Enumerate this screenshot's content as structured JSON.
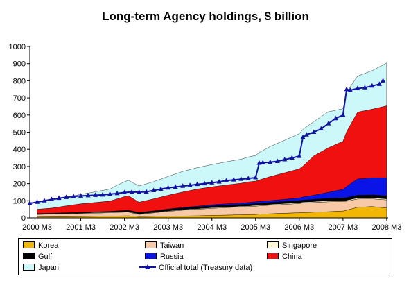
{
  "chart_data": {
    "type": "area",
    "title": "Long-term Agency holdings, $ billion",
    "xlabel": "",
    "ylabel": "",
    "ylim": [
      0,
      1000
    ],
    "yticks": [
      0,
      100,
      200,
      300,
      400,
      500,
      600,
      700,
      800,
      900,
      1000
    ],
    "xtick_labels": [
      "2000 M3",
      "2001 M3",
      "2002 M3",
      "2003 M3",
      "2004 M3",
      "2005 M3",
      "2006 M3",
      "2007 M3",
      "2008 M3"
    ],
    "x_months": [
      2000.167,
      2000.5,
      2000.833,
      2001.167,
      2001.5,
      2001.833,
      2002.0,
      2002.25,
      2002.5,
      2002.833,
      2003.167,
      2003.5,
      2003.833,
      2004.167,
      2004.5,
      2004.833,
      2005.0,
      2005.167,
      2005.25,
      2005.5,
      2005.833,
      2006.167,
      2006.25,
      2006.5,
      2006.833,
      2007.167,
      2007.25,
      2007.5,
      2007.833,
      2008.167
    ],
    "stack_order": [
      "Korea",
      "Taiwan",
      "Singapore",
      "Gulf",
      "Russia",
      "China",
      "Japan"
    ],
    "series": [
      {
        "name": "Korea",
        "color": "#f2b705",
        "values": [
          5,
          6,
          7,
          8,
          9,
          10,
          11,
          12,
          8,
          9,
          10,
          11,
          12,
          14,
          16,
          18,
          19,
          20,
          22,
          24,
          27,
          30,
          31,
          33,
          36,
          40,
          45,
          62,
          66,
          58
        ]
      },
      {
        "name": "Taiwan",
        "color": "#f7c9a6",
        "values": [
          15,
          16,
          17,
          18,
          19,
          20,
          21,
          22,
          12,
          20,
          28,
          34,
          38,
          42,
          44,
          46,
          47,
          48,
          48,
          50,
          52,
          54,
          56,
          57,
          58,
          56,
          52,
          48,
          45,
          47
        ]
      },
      {
        "name": "Singapore",
        "color": "#fff8d8",
        "values": [
          2,
          2,
          2,
          2,
          3,
          3,
          3,
          3,
          3,
          3,
          3,
          4,
          4,
          4,
          4,
          4,
          4,
          5,
          5,
          5,
          5,
          5,
          5,
          5,
          6,
          6,
          6,
          6,
          6,
          6
        ]
      },
      {
        "name": "Gulf",
        "color": "#000000",
        "values": [
          3,
          3,
          4,
          4,
          4,
          5,
          6,
          8,
          8,
          8,
          9,
          9,
          10,
          10,
          10,
          10,
          10,
          11,
          11,
          11,
          12,
          12,
          12,
          13,
          14,
          15,
          15,
          16,
          17,
          18
        ]
      },
      {
        "name": "Russia",
        "color": "#0a14e6",
        "values": [
          0,
          0,
          0,
          0,
          0,
          0,
          0,
          0,
          0,
          1,
          2,
          3,
          4,
          6,
          8,
          9,
          10,
          10,
          10,
          11,
          12,
          15,
          18,
          24,
          35,
          50,
          65,
          95,
          100,
          105
        ]
      },
      {
        "name": "China",
        "color": "#f01010",
        "values": [
          25,
          30,
          40,
          50,
          55,
          60,
          70,
          85,
          60,
          70,
          80,
          90,
          100,
          105,
          110,
          115,
          120,
          120,
          125,
          140,
          155,
          170,
          180,
          230,
          260,
          280,
          320,
          390,
          400,
          420
        ]
      },
      {
        "name": "Japan",
        "color": "#ccf8fa",
        "values": [
          40,
          45,
          50,
          55,
          62,
          70,
          80,
          90,
          95,
          100,
          110,
          120,
          125,
          130,
          135,
          140,
          145,
          150,
          160,
          175,
          190,
          205,
          215,
          200,
          210,
          190,
          230,
          210,
          225,
          250
        ]
      }
    ],
    "official_total": {
      "name": "Official total (Treasury data)",
      "color": "#1212a0",
      "x": [
        2000.0,
        2000.167,
        2000.333,
        2000.5,
        2000.667,
        2000.833,
        2001.0,
        2001.167,
        2001.333,
        2001.5,
        2001.667,
        2001.833,
        2002.0,
        2002.167,
        2002.333,
        2002.5,
        2002.667,
        2002.833,
        2003.0,
        2003.167,
        2003.333,
        2003.5,
        2003.667,
        2003.833,
        2004.0,
        2004.167,
        2004.333,
        2004.5,
        2004.667,
        2004.833,
        2005.0,
        2005.167,
        2005.25,
        2005.333,
        2005.5,
        2005.667,
        2005.833,
        2006.0,
        2006.167,
        2006.25,
        2006.333,
        2006.5,
        2006.667,
        2006.833,
        2007.0,
        2007.167,
        2007.25,
        2007.333,
        2007.5,
        2007.667,
        2007.833,
        2008.0,
        2008.083
      ],
      "values": [
        85,
        92,
        100,
        108,
        115,
        120,
        125,
        128,
        130,
        132,
        134,
        138,
        142,
        148,
        150,
        150,
        152,
        160,
        168,
        175,
        180,
        185,
        190,
        196,
        200,
        205,
        210,
        218,
        222,
        226,
        230,
        235,
        320,
        322,
        325,
        330,
        340,
        350,
        360,
        470,
        485,
        500,
        520,
        550,
        580,
        600,
        750,
        745,
        755,
        760,
        770,
        780,
        800
      ]
    },
    "legend": "bottom",
    "grid": false
  }
}
